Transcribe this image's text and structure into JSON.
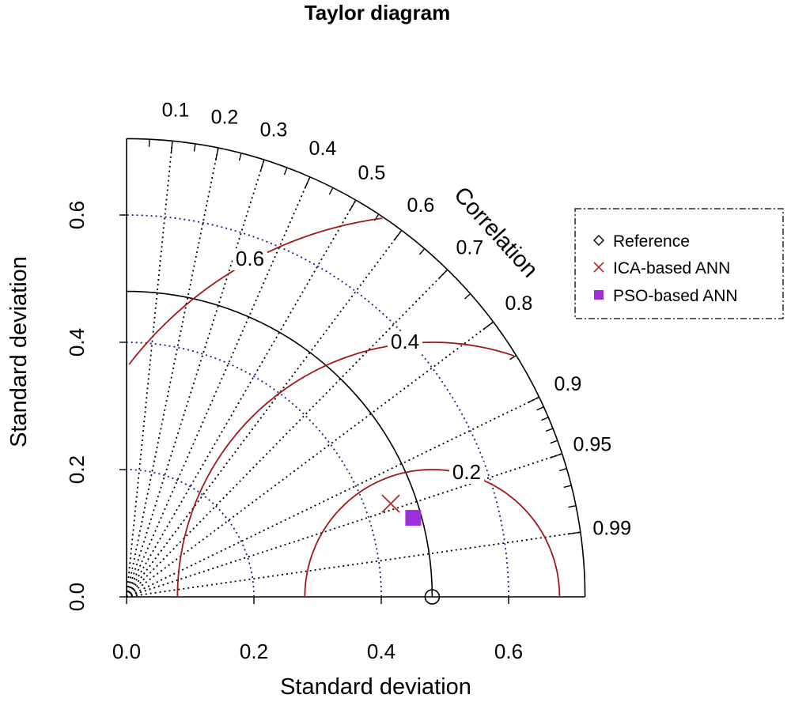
{
  "chart_data": {
    "type": "scatter",
    "subtype": "taylor-diagram",
    "title": "Taylor diagram",
    "xlabel": "Standard deviation",
    "ylabel": "Standard deviation",
    "corr_axis_label": "Correlation",
    "sd_range": [
      0,
      0.72
    ],
    "x_ticks": [
      "0.0",
      "0.2",
      "0.4",
      "0.6"
    ],
    "y_ticks": [
      "0.0",
      "0.2",
      "0.4",
      "0.6"
    ],
    "correlation_ticks": [
      "0.1",
      "0.2",
      "0.3",
      "0.4",
      "0.5",
      "0.6",
      "0.7",
      "0.8",
      "0.9",
      "0.95",
      "0.99"
    ],
    "sd_gridlines": [
      0.2,
      0.4,
      0.6
    ],
    "rms_contours": [
      0.2,
      0.4,
      0.6
    ],
    "rms_labels": [
      "0.2",
      "0.4",
      "0.6"
    ],
    "reference": {
      "name": "Reference",
      "sd": 0.48,
      "correlation": 1.0
    },
    "series": [
      {
        "name": "ICA-based ANN",
        "marker": "x",
        "color": "#b02a2a",
        "sd": 0.44,
        "correlation": 0.943
      },
      {
        "name": "PSO-based ANN",
        "marker": "square",
        "color": "#9b30d9",
        "sd": 0.467,
        "correlation": 0.964
      }
    ],
    "grid": true,
    "legend_position": "right"
  }
}
